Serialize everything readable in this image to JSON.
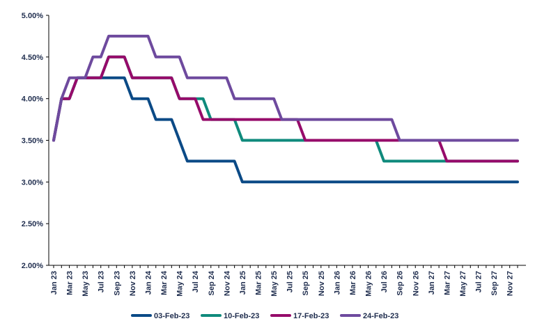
{
  "chart_data": {
    "type": "line",
    "title": "",
    "xlabel": "",
    "ylabel": "",
    "ylim": [
      0.02,
      0.05
    ],
    "y_ticks": [
      "2.00%",
      "2.50%",
      "3.00%",
      "3.50%",
      "4.00%",
      "4.50%",
      "5.00%"
    ],
    "y_tick_values": [
      0.02,
      0.025,
      0.03,
      0.035,
      0.04,
      0.045,
      0.05
    ],
    "grid": false,
    "legend_position": "bottom",
    "x": [
      "Jan 23",
      "Feb 23",
      "Mar 23",
      "Apr 23",
      "May 23",
      "Jun 23",
      "Jul 23",
      "Aug 23",
      "Sep 23",
      "Oct 23",
      "Nov 23",
      "Dec 23",
      "Jan 24",
      "Feb 24",
      "Mar 24",
      "Apr 24",
      "May 24",
      "Jun 24",
      "Jul 24",
      "Aug 24",
      "Sep 24",
      "Oct 24",
      "Nov 24",
      "Dec 24",
      "Jan 25",
      "Feb 25",
      "Mar 25",
      "Apr 25",
      "May 25",
      "Jun 25",
      "Jul 25",
      "Aug 25",
      "Sep 25",
      "Oct 25",
      "Nov 25",
      "Dec 25",
      "Jan 26",
      "Feb 26",
      "Mar 26",
      "Apr 26",
      "May 26",
      "Jun 26",
      "Jul 26",
      "Aug 26",
      "Sep 26",
      "Oct 26",
      "Nov 26",
      "Dec 26",
      "Jan 27",
      "Feb 27",
      "Mar 27",
      "Apr 27",
      "May 27",
      "Jun 27",
      "Jul 27",
      "Aug 27",
      "Sep 27",
      "Oct 27",
      "Nov 27",
      "Dec 27"
    ],
    "x_tick_labels": [
      "Jan 23",
      "Mar 23",
      "May 23",
      "Jul 23",
      "Sep 23",
      "Nov 23",
      "Jan 24",
      "Mar 24",
      "May 24",
      "Jul 24",
      "Sep 24",
      "Nov 24",
      "Jan 25",
      "Mar 25",
      "May 25",
      "Jul 25",
      "Sep 25",
      "Nov 25",
      "Jan 26",
      "Mar 26",
      "May 26",
      "Jul 26",
      "Sep 26",
      "Nov 26",
      "Jan 27",
      "Mar 27",
      "May 27",
      "Jul 27",
      "Sep 27",
      "Nov 27"
    ],
    "series": [
      {
        "name": "03-Feb-23",
        "color": "#0b4a86",
        "values": [
          0.035,
          0.04,
          0.04,
          0.0425,
          0.0425,
          0.0425,
          0.0425,
          0.0425,
          0.0425,
          0.0425,
          0.04,
          0.04,
          0.04,
          0.0375,
          0.0375,
          0.0375,
          0.035,
          0.0325,
          0.0325,
          0.0325,
          0.0325,
          0.0325,
          0.0325,
          0.0325,
          0.03,
          0.03,
          0.03,
          0.03,
          0.03,
          0.03,
          0.03,
          0.03,
          0.03,
          0.03,
          0.03,
          0.03,
          0.03,
          0.03,
          0.03,
          0.03,
          0.03,
          0.03,
          0.03,
          0.03,
          0.03,
          0.03,
          0.03,
          0.03,
          0.03,
          0.03,
          0.03,
          0.03,
          0.03,
          0.03,
          0.03,
          0.03,
          0.03,
          0.03,
          0.03,
          0.03
        ]
      },
      {
        "name": "10-Feb-23",
        "color": "#0f8a7c",
        "values": [
          0.035,
          0.04,
          0.04,
          0.0425,
          0.0425,
          0.0425,
          0.0425,
          0.045,
          0.045,
          0.045,
          0.0425,
          0.0425,
          0.0425,
          0.0425,
          0.0425,
          0.0425,
          0.04,
          0.04,
          0.04,
          0.04,
          0.0375,
          0.0375,
          0.0375,
          0.0375,
          0.035,
          0.035,
          0.035,
          0.035,
          0.035,
          0.035,
          0.035,
          0.035,
          0.035,
          0.035,
          0.035,
          0.035,
          0.035,
          0.035,
          0.035,
          0.035,
          0.035,
          0.035,
          0.0325,
          0.0325,
          0.0325,
          0.0325,
          0.0325,
          0.0325,
          0.0325,
          0.0325,
          0.0325,
          0.0325,
          0.0325,
          0.0325,
          0.0325,
          0.0325,
          0.0325,
          0.0325,
          0.0325,
          0.0325
        ]
      },
      {
        "name": "17-Feb-23",
        "color": "#960b6a",
        "values": [
          0.035,
          0.04,
          0.04,
          0.0425,
          0.0425,
          0.0425,
          0.0425,
          0.045,
          0.045,
          0.045,
          0.0425,
          0.0425,
          0.0425,
          0.0425,
          0.0425,
          0.0425,
          0.04,
          0.04,
          0.04,
          0.0375,
          0.0375,
          0.0375,
          0.0375,
          0.0375,
          0.0375,
          0.0375,
          0.0375,
          0.0375,
          0.0375,
          0.0375,
          0.0375,
          0.0375,
          0.035,
          0.035,
          0.035,
          0.035,
          0.035,
          0.035,
          0.035,
          0.035,
          0.035,
          0.035,
          0.035,
          0.035,
          0.035,
          0.035,
          0.035,
          0.035,
          0.035,
          0.035,
          0.0325,
          0.0325,
          0.0325,
          0.0325,
          0.0325,
          0.0325,
          0.0325,
          0.0325,
          0.0325,
          0.0325
        ]
      },
      {
        "name": "24-Feb-23",
        "color": "#6e4a9e",
        "values": [
          0.035,
          0.04,
          0.0425,
          0.0425,
          0.0425,
          0.045,
          0.045,
          0.0475,
          0.0475,
          0.0475,
          0.0475,
          0.0475,
          0.0475,
          0.045,
          0.045,
          0.045,
          0.045,
          0.0425,
          0.0425,
          0.0425,
          0.0425,
          0.0425,
          0.0425,
          0.04,
          0.04,
          0.04,
          0.04,
          0.04,
          0.04,
          0.0375,
          0.0375,
          0.0375,
          0.0375,
          0.0375,
          0.0375,
          0.0375,
          0.0375,
          0.0375,
          0.0375,
          0.0375,
          0.0375,
          0.0375,
          0.0375,
          0.0375,
          0.035,
          0.035,
          0.035,
          0.035,
          0.035,
          0.035,
          0.035,
          0.035,
          0.035,
          0.035,
          0.035,
          0.035,
          0.035,
          0.035,
          0.035,
          0.035
        ]
      }
    ]
  },
  "colors": {
    "axis": "#000000",
    "tick_text": "#1f2d4e",
    "background": "#ffffff"
  }
}
